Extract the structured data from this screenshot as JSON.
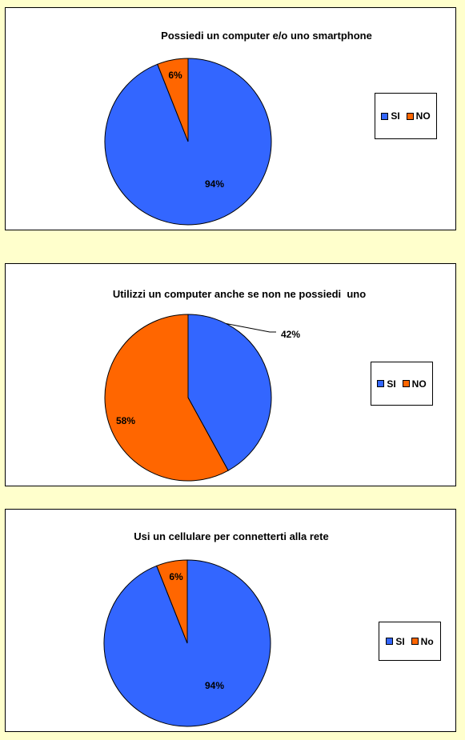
{
  "colors": {
    "si": "#3366FF",
    "no": "#FF6600",
    "background": "#FFFFCC"
  },
  "chart_data": [
    {
      "type": "pie",
      "title": "Possiedi un computer e/o uno smartphone",
      "categories": [
        "SI",
        "NO"
      ],
      "values": [
        94,
        6
      ],
      "value_labels": [
        "94%",
        "6%"
      ],
      "legend": [
        "SI",
        "NO"
      ],
      "legend_position": "right"
    },
    {
      "type": "pie",
      "title": "Utilizzi un computer anche se non ne possiedi  uno",
      "categories": [
        "SI",
        "NO"
      ],
      "values": [
        42,
        58
      ],
      "value_labels": [
        "42%",
        "58%"
      ],
      "legend": [
        "SI",
        "NO"
      ],
      "legend_position": "right"
    },
    {
      "type": "pie",
      "title": "Usi un cellulare per connetterti alla rete",
      "categories": [
        "SI",
        "No"
      ],
      "values": [
        94,
        6
      ],
      "value_labels": [
        "94%",
        "6%"
      ],
      "legend": [
        "SI",
        "No"
      ],
      "legend_position": "right"
    }
  ]
}
